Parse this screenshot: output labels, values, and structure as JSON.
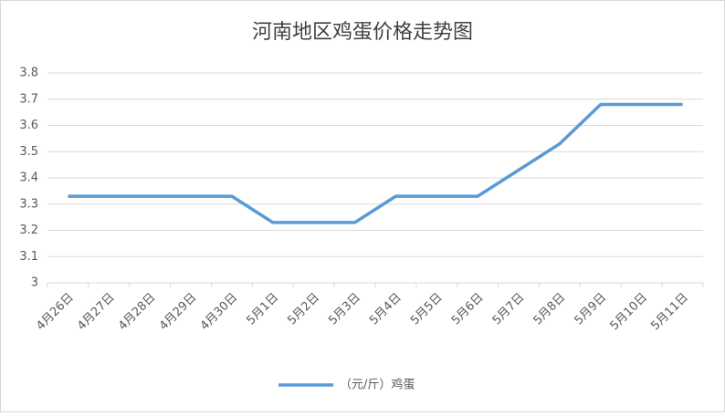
{
  "chart_data": {
    "type": "line",
    "title": "河南地区鸡蛋价格走势图",
    "categories": [
      "4月26日",
      "4月27日",
      "4月28日",
      "4月29日",
      "4月30日",
      "5月1日",
      "5月2日",
      "5月3日",
      "5月4日",
      "5月5日",
      "5月6日",
      "5月7日",
      "5月8日",
      "5月9日",
      "5月10日",
      "5月11日"
    ],
    "series": [
      {
        "name": "（元/斤）鸡蛋",
        "color": "#5b9bd5",
        "values": [
          3.33,
          3.33,
          3.33,
          3.33,
          3.33,
          3.23,
          3.23,
          3.23,
          3.33,
          3.33,
          3.33,
          3.43,
          3.53,
          3.68,
          3.68,
          3.68
        ]
      }
    ],
    "ylim": [
      3,
      3.8
    ],
    "yticks": [
      3,
      3.1,
      3.2,
      3.3,
      3.4,
      3.5,
      3.6,
      3.7,
      3.8
    ],
    "grid": true,
    "legend": "bottom"
  }
}
